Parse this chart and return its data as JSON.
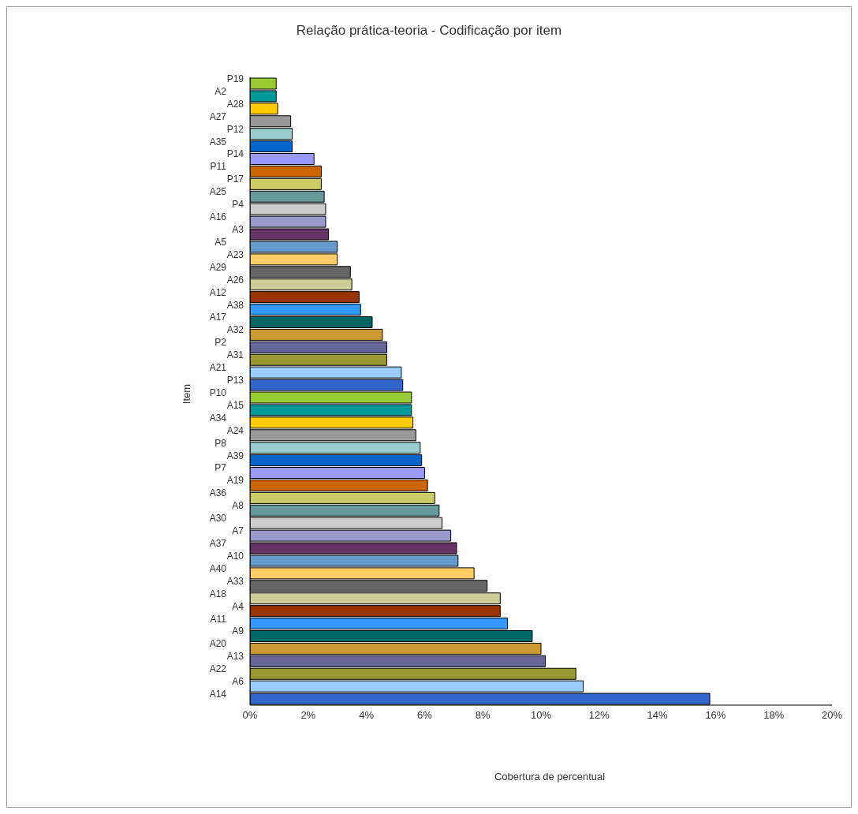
{
  "chart_data": {
    "type": "bar",
    "orientation": "horizontal",
    "title": "Relação prática-teoria - Codificação por item",
    "xlabel": "Cobertura de percentual",
    "ylabel": "Item",
    "categories": [
      "P19",
      "A2",
      "A28",
      "A27",
      "P12",
      "A35",
      "P14",
      "P11",
      "P17",
      "A25",
      "P4",
      "A16",
      "A3",
      "A5",
      "A23",
      "A29",
      "A26",
      "A12",
      "A38",
      "A17",
      "A32",
      "P2",
      "A31",
      "A21",
      "P13",
      "P10",
      "A15",
      "A34",
      "A24",
      "P8",
      "A39",
      "P7",
      "A19",
      "A36",
      "A8",
      "A30",
      "A7",
      "A37",
      "A10",
      "A40",
      "A33",
      "A18",
      "A4",
      "A11",
      "A9",
      "A20",
      "A13",
      "A22",
      "A6",
      "A14"
    ],
    "values": [
      0.9,
      0.9,
      0.95,
      1.4,
      1.45,
      1.45,
      2.2,
      2.45,
      2.45,
      2.55,
      2.6,
      2.6,
      2.7,
      3.0,
      3.0,
      3.45,
      3.5,
      3.75,
      3.8,
      4.2,
      4.55,
      4.7,
      4.7,
      5.2,
      5.25,
      5.55,
      5.55,
      5.6,
      5.7,
      5.85,
      5.9,
      6.0,
      6.1,
      6.35,
      6.5,
      6.6,
      6.9,
      7.1,
      7.15,
      7.7,
      8.15,
      8.6,
      8.6,
      8.85,
      9.7,
      10.0,
      10.15,
      11.2,
      11.45,
      15.8
    ],
    "colors": [
      "#99cc33",
      "#009999",
      "#ffcc00",
      "#999999",
      "#99cccc",
      "#0066cc",
      "#9999ff",
      "#cc6600",
      "#cccc66",
      "#669999",
      "#cccccc",
      "#9999cc",
      "#663366",
      "#6699cc",
      "#ffcc66",
      "#666666",
      "#cccc99",
      "#993300",
      "#3399ff",
      "#006666",
      "#cc9933",
      "#666699",
      "#999933",
      "#99ccff",
      "#3366cc",
      "#99cc33",
      "#009999",
      "#ffcc00",
      "#999999",
      "#99cccc",
      "#0066cc",
      "#9999ff",
      "#cc6600",
      "#cccc66",
      "#669999",
      "#cccccc",
      "#9999cc",
      "#663366",
      "#6699cc",
      "#ffcc66",
      "#666666",
      "#cccc99",
      "#993300",
      "#3399ff",
      "#006666",
      "#cc9933",
      "#666699",
      "#999933",
      "#99ccff",
      "#3366cc"
    ],
    "xlim": [
      0,
      20
    ],
    "xticks": [
      {
        "value": 0,
        "label": "0%"
      },
      {
        "value": 2,
        "label": "2%"
      },
      {
        "value": 4,
        "label": "4%"
      },
      {
        "value": 6,
        "label": "6%"
      },
      {
        "value": 8,
        "label": "8%"
      },
      {
        "value": 10,
        "label": "10%"
      },
      {
        "value": 12,
        "label": "12%"
      },
      {
        "value": 14,
        "label": "14%"
      },
      {
        "value": 16,
        "label": "16%"
      },
      {
        "value": 18,
        "label": "18%"
      },
      {
        "value": 20,
        "label": "20%"
      }
    ],
    "grid": false,
    "legend": false
  }
}
